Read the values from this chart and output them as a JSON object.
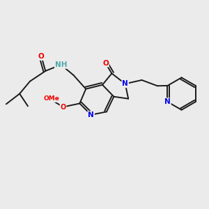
{
  "bg_color": "#ebebeb",
  "bond_color": "#1a1a1a",
  "atom_colors": {
    "N": "#0000ee",
    "O": "#ee0000",
    "H_label": "#4fa8a8",
    "C": "#1a1a1a"
  },
  "font_size": 7.5,
  "lw": 1.4
}
